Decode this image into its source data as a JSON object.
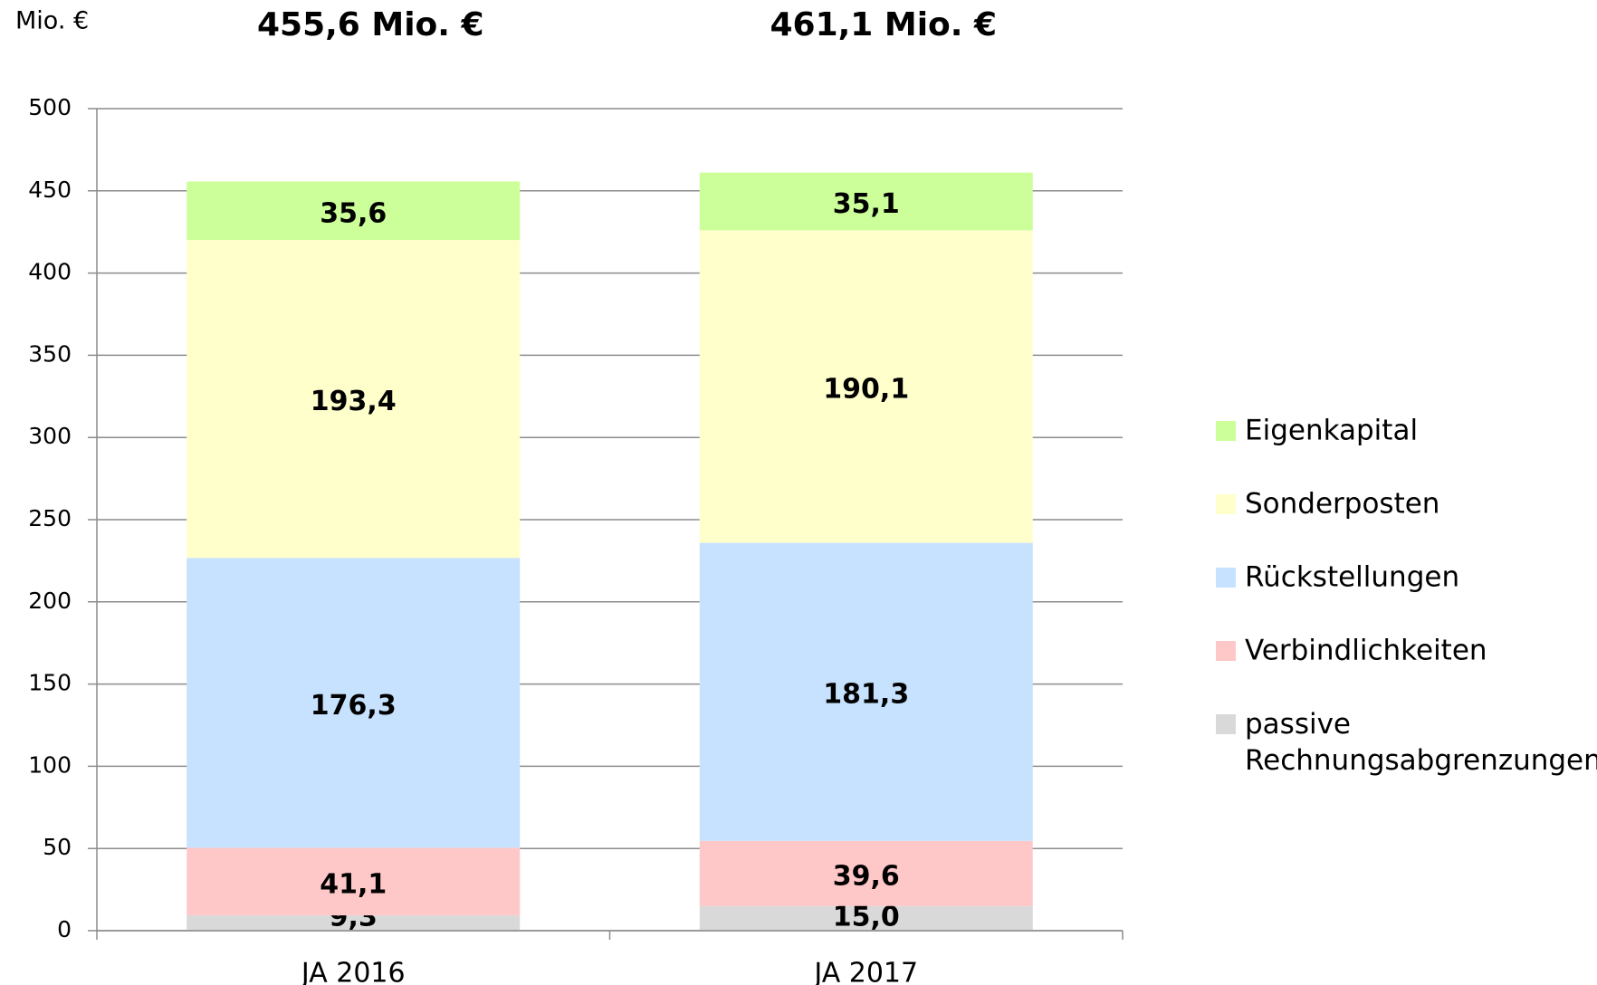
{
  "chart_data": {
    "type": "stacked_bar",
    "y_unit_label": "Mio. €",
    "annotations": [
      "455,6 Mio. €",
      "461,1 Mio. €"
    ],
    "categories": [
      "JA 2016",
      "JA 2017"
    ],
    "series": [
      {
        "name": "passive Rechnungsabgrenzungen",
        "color": "#d9d9d9",
        "values": [
          9.3,
          15.0
        ],
        "value_labels": [
          "9,3",
          "15,0"
        ]
      },
      {
        "name": "Verbindlichkeiten",
        "color": "#ffc8c8",
        "values": [
          41.1,
          39.6
        ],
        "value_labels": [
          "41,1",
          "39,6"
        ]
      },
      {
        "name": "Rückstellungen",
        "color": "#c6e2ff",
        "values": [
          176.3,
          181.3
        ],
        "value_labels": [
          "176,3",
          "181,3"
        ]
      },
      {
        "name": "Sonderposten",
        "color": "#ffffcc",
        "values": [
          193.4,
          190.1
        ],
        "value_labels": [
          "193,4",
          "190,1"
        ]
      },
      {
        "name": "Eigenkapital",
        "color": "#ccff99",
        "values": [
          35.6,
          35.1
        ],
        "value_labels": [
          "35,6",
          "35,1"
        ]
      }
    ],
    "ylim": [
      0,
      500
    ],
    "yticks": [
      0,
      50,
      100,
      150,
      200,
      250,
      300,
      350,
      400,
      450,
      500
    ],
    "grid": true,
    "legend": "right"
  }
}
